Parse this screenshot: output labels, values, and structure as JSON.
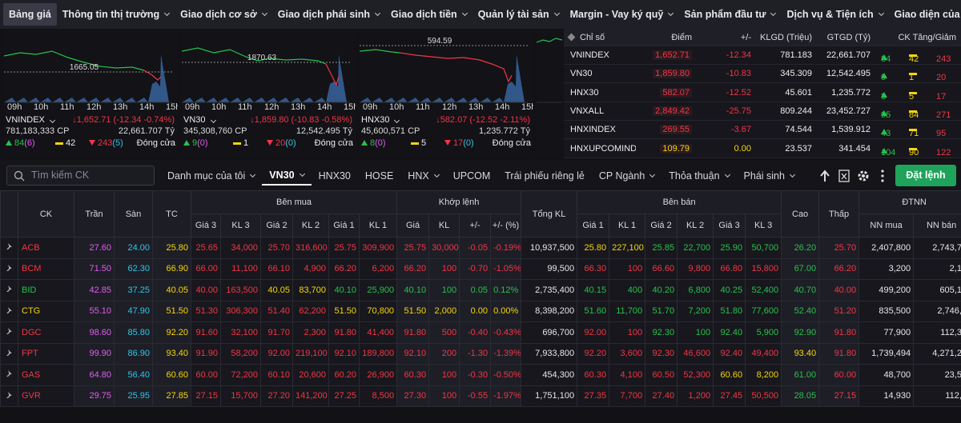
{
  "nav": {
    "items": [
      "Bảng giá",
      "Thông tin thị trường",
      "Giao dịch cơ sở",
      "Giao dịch phái sinh",
      "Giao dịch tiền",
      "Quản lý tài sản",
      "Margin - Vay ký quỹ",
      "Sản phẩm đầu tư",
      "Dịch vụ & Tiện ích",
      "Giao diện của tôi"
    ],
    "active": 0
  },
  "time_labels": [
    "09h",
    "10h",
    "11h",
    "12h",
    "13h",
    "14h",
    "15h"
  ],
  "index_panels": [
    {
      "name": "VNINDEX",
      "ref": "1665.05",
      "change": "↓1,652.71 (-12.34 -0.74%)",
      "volume": "781,183,333 CP",
      "value": "22,661.707 Tỷ",
      "up": "84",
      "up_ceil": "(6)",
      "eq": "42",
      "down": "243",
      "down_floor": "(5)",
      "status": "Đóng cửa"
    },
    {
      "name": "VN30",
      "ref": "1870.63",
      "change": "↓1,859.80 (-10.83 -0.58%)",
      "volume": "345,308,760 CP",
      "value": "12,542.495 Tỷ",
      "up": "9",
      "up_ceil": "(0)",
      "eq": "1",
      "down": "20",
      "down_floor": "(0)",
      "status": "Đóng cửa"
    },
    {
      "name": "HNX30",
      "ref": "594.59",
      "change": "↓582.07 (-12.52 -2.11%)",
      "volume": "45,600,571 CP",
      "value": "1,235.772 Tỷ",
      "up": "8",
      "up_ceil": "(0)",
      "eq": "5",
      "down": "17",
      "down_floor": "(0)",
      "status": "Đóng cửa"
    }
  ],
  "index_table": {
    "headers": [
      "Chỉ số",
      "Điểm",
      "+/-",
      "KLGD (Triệu)",
      "GTGD (Tỷ)",
      "CK Tăng/Giảm"
    ],
    "rows": [
      [
        "VNINDEX",
        "1,652.71",
        "-12.34",
        "781.183",
        "22,661.707",
        "84",
        "42",
        "243"
      ],
      [
        "VN30",
        "1,859.80",
        "-10.83",
        "345.309",
        "12,542.495",
        "9",
        "1",
        "20"
      ],
      [
        "HNX30",
        "582.07",
        "-12.52",
        "45.601",
        "1,235.772",
        "8",
        "5",
        "17"
      ],
      [
        "VNXALL",
        "2,849.42",
        "-25.75",
        "809.244",
        "23,452.727",
        "95",
        "84",
        "271"
      ],
      [
        "HNXINDEX",
        "269.55",
        "-3.67",
        "74.544",
        "1,539.912",
        "43",
        "71",
        "95"
      ],
      [
        "HNXUPCOMINDE",
        "109.79",
        "0.00",
        "23.537",
        "341.454",
        "104",
        "90",
        "122"
      ]
    ]
  },
  "toolbar": {
    "search_placeholder": "Tìm kiếm CK",
    "tabs": [
      "Danh mục của tôi",
      "VN30",
      "HNX30",
      "HOSE",
      "HNX",
      "UPCOM",
      "Trái phiếu riêng lẻ",
      "CP Ngành",
      "Thỏa thuận",
      "Phái sinh"
    ],
    "dropdown_tabs": [
      0,
      1,
      4,
      7,
      8,
      9
    ],
    "active_tab": 1,
    "order_button": "Đặt lệnh"
  },
  "price_table": {
    "groups": [
      "CK",
      "Trần",
      "Sàn",
      "TC",
      "Bên mua",
      "Khớp lệnh",
      "Tổng KL",
      "Bên bán",
      "Cao",
      "Thấp",
      "ĐTNN"
    ],
    "sub_headers": [
      "Giá 3",
      "KL 3",
      "Giá 2",
      "KL 2",
      "Giá 1",
      "KL 1",
      "Giá",
      "KL",
      "+/-",
      "+/- (%)",
      "Giá 1",
      "KL 1",
      "Giá 2",
      "KL 2",
      "Giá 3",
      "KL 3",
      "NN mua",
      "NN bán"
    ],
    "rows": [
      [
        "ACB",
        "27.60",
        "24.00",
        "25.80",
        "25.65",
        "34,000",
        "25.70",
        "316,600",
        "25.75",
        "309,900",
        "25.75",
        "30,000",
        "-0.05",
        "-0.19%",
        "10,937,500",
        "25.80",
        "227,100",
        "25.85",
        "22,700",
        "25.90",
        "50,700",
        "26.20",
        "25.70",
        "2,407,800",
        "2,743,70"
      ],
      [
        "BCM",
        "71.50",
        "62.30",
        "66.90",
        "66.00",
        "11,100",
        "66.10",
        "4,900",
        "66.20",
        "6,200",
        "66.20",
        "100",
        "-0.70",
        "-1.05%",
        "99,500",
        "66.30",
        "100",
        "66.60",
        "9,800",
        "66.80",
        "15,800",
        "67.00",
        "66.20",
        "3,200",
        "2,10"
      ],
      [
        "BID",
        "42.85",
        "37.25",
        "40.05",
        "40.00",
        "163,500",
        "40.05",
        "83,700",
        "40.10",
        "25,900",
        "40.10",
        "100",
        "0.05",
        "0.12%",
        "2,735,400",
        "40.15",
        "400",
        "40.20",
        "6,800",
        "40.25",
        "52,400",
        "40.70",
        "40.00",
        "499,200",
        "605,12"
      ],
      [
        "CTG",
        "55.10",
        "47.90",
        "51.50",
        "51.30",
        "306,300",
        "51.40",
        "62,200",
        "51.50",
        "70,800",
        "51.50",
        "2,000",
        "0.00",
        "0.00%",
        "8,398,200",
        "51.60",
        "11,700",
        "51.70",
        "7,200",
        "51.80",
        "77,600",
        "52.40",
        "51.20",
        "835,500",
        "2,746,1"
      ],
      [
        "DGC",
        "98.60",
        "85.80",
        "92.20",
        "91.60",
        "32,100",
        "91.70",
        "2,300",
        "91.80",
        "41,400",
        "91.80",
        "500",
        "-0.40",
        "-0.43%",
        "696,700",
        "92.00",
        "100",
        "92.30",
        "100",
        "92.40",
        "5,900",
        "92.90",
        "91.80",
        "77,900",
        "112,30"
      ],
      [
        "FPT",
        "99.90",
        "86.90",
        "93.40",
        "91.90",
        "58,200",
        "92.00",
        "219,100",
        "92.10",
        "189,800",
        "92.10",
        "200",
        "-1.30",
        "-1.39%",
        "7,933,800",
        "92.20",
        "3,600",
        "92.30",
        "46,600",
        "92.40",
        "49,400",
        "93.40",
        "91.80",
        "1,739,494",
        "4,271,23"
      ],
      [
        "GAS",
        "64.80",
        "56.40",
        "60.60",
        "60.00",
        "72,200",
        "60.10",
        "20,600",
        "60.20",
        "26,900",
        "60.30",
        "100",
        "-0.30",
        "-0.50%",
        "454,300",
        "60.30",
        "4,100",
        "60.50",
        "52,300",
        "60.60",
        "8,200",
        "61.00",
        "60.00",
        "48,700",
        "23,50"
      ],
      [
        "GVR",
        "29.75",
        "25.95",
        "27.85",
        "27.15",
        "15,700",
        "27.20",
        "141,200",
        "27.25",
        "8,500",
        "27.30",
        "100",
        "-0.55",
        "-1.97%",
        "1,751,100",
        "27.35",
        "7,700",
        "27.40",
        "1,200",
        "27.45",
        "50,500",
        "28.05",
        "27.15",
        "14,930",
        "112,7"
      ]
    ]
  }
}
